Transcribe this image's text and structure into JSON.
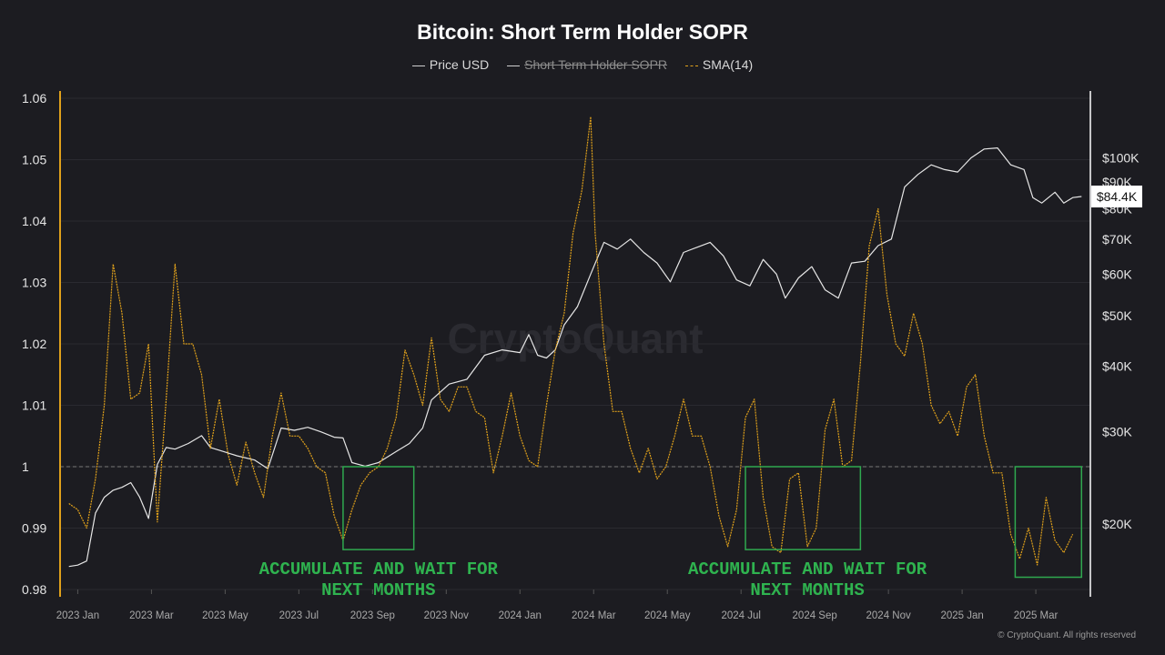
{
  "chart_data": {
    "type": "line",
    "title": "Bitcoin: Short Term Holder SOPR",
    "legend": [
      {
        "name": "Price USD",
        "color": "#e6e6e6",
        "hidden": false
      },
      {
        "name": "Short Term Holder SOPR",
        "color": "#bdbdbd",
        "hidden": true
      },
      {
        "name": "SMA(14)",
        "color": "#e0a11b",
        "hidden": false
      }
    ],
    "x_ticks": [
      "2023 Jan",
      "2023 Mar",
      "2023 May",
      "2023 Jul",
      "2023 Sep",
      "2023 Nov",
      "2024 Jan",
      "2024 Mar",
      "2024 May",
      "2024 Jul",
      "2024 Sep",
      "2024 Nov",
      "2025 Jan",
      "2025 Mar"
    ],
    "x_range": [
      2022.96,
      2025.29
    ],
    "y_left": {
      "ticks": [
        "1.06",
        "1.05",
        "1.04",
        "1.03",
        "1.02",
        "1.01",
        "1",
        "0.99",
        "0.98"
      ],
      "ylim": [
        0.98,
        1.06
      ],
      "color": "#e0a11b"
    },
    "y_right": {
      "ticks": [
        "$100K",
        "$90K",
        "$80K",
        "$70K",
        "$60K",
        "$50K",
        "$40K",
        "$30K",
        "$20K"
      ],
      "scale": "log",
      "ylim": [
        15000,
        130000
      ]
    },
    "reference_line": 1.0,
    "current_price_label": "$84.4K",
    "series": [
      {
        "name": "Price USD",
        "axis": "right",
        "points": [
          [
            2022.98,
            16600
          ],
          [
            2023.0,
            16700
          ],
          [
            2023.02,
            17000
          ],
          [
            2023.04,
            21000
          ],
          [
            2023.06,
            22500
          ],
          [
            2023.08,
            23200
          ],
          [
            2023.1,
            23500
          ],
          [
            2023.12,
            24000
          ],
          [
            2023.14,
            22500
          ],
          [
            2023.16,
            20500
          ],
          [
            2023.18,
            26000
          ],
          [
            2023.2,
            28000
          ],
          [
            2023.22,
            27800
          ],
          [
            2023.25,
            28500
          ],
          [
            2023.28,
            29500
          ],
          [
            2023.3,
            28000
          ],
          [
            2023.33,
            27500
          ],
          [
            2023.36,
            27000
          ],
          [
            2023.4,
            26500
          ],
          [
            2023.43,
            25500
          ],
          [
            2023.46,
            30500
          ],
          [
            2023.49,
            30200
          ],
          [
            2023.52,
            30600
          ],
          [
            2023.55,
            30000
          ],
          [
            2023.58,
            29300
          ],
          [
            2023.6,
            29200
          ],
          [
            2023.62,
            26200
          ],
          [
            2023.65,
            25800
          ],
          [
            2023.68,
            26200
          ],
          [
            2023.72,
            27500
          ],
          [
            2023.75,
            28500
          ],
          [
            2023.78,
            30500
          ],
          [
            2023.8,
            34500
          ],
          [
            2023.84,
            37000
          ],
          [
            2023.88,
            37800
          ],
          [
            2023.92,
            42000
          ],
          [
            2023.96,
            43000
          ],
          [
            2024.0,
            42500
          ],
          [
            2024.02,
            46000
          ],
          [
            2024.04,
            42000
          ],
          [
            2024.06,
            41500
          ],
          [
            2024.08,
            43000
          ],
          [
            2024.1,
            48000
          ],
          [
            2024.13,
            52000
          ],
          [
            2024.16,
            60000
          ],
          [
            2024.19,
            69000
          ],
          [
            2024.22,
            67000
          ],
          [
            2024.25,
            70000
          ],
          [
            2024.28,
            66000
          ],
          [
            2024.31,
            63000
          ],
          [
            2024.34,
            58000
          ],
          [
            2024.37,
            66000
          ],
          [
            2024.4,
            67500
          ],
          [
            2024.43,
            69000
          ],
          [
            2024.46,
            65000
          ],
          [
            2024.49,
            58500
          ],
          [
            2024.52,
            57000
          ],
          [
            2024.55,
            64000
          ],
          [
            2024.58,
            60000
          ],
          [
            2024.6,
            54000
          ],
          [
            2024.63,
            59000
          ],
          [
            2024.66,
            62000
          ],
          [
            2024.69,
            56000
          ],
          [
            2024.72,
            54000
          ],
          [
            2024.75,
            63000
          ],
          [
            2024.78,
            63500
          ],
          [
            2024.81,
            68000
          ],
          [
            2024.84,
            70000
          ],
          [
            2024.87,
            88000
          ],
          [
            2024.9,
            93000
          ],
          [
            2024.93,
            97000
          ],
          [
            2024.96,
            95000
          ],
          [
            2024.99,
            94000
          ],
          [
            2025.02,
            100000
          ],
          [
            2025.05,
            104000
          ],
          [
            2025.08,
            104500
          ],
          [
            2025.11,
            97000
          ],
          [
            2025.14,
            95000
          ],
          [
            2025.16,
            84000
          ],
          [
            2025.18,
            82000
          ],
          [
            2025.21,
            86000
          ],
          [
            2025.23,
            82000
          ],
          [
            2025.25,
            84000
          ],
          [
            2025.27,
            84400
          ]
        ]
      },
      {
        "name": "SMA(14)",
        "axis": "left",
        "points": [
          [
            2022.98,
            0.994
          ],
          [
            2023.0,
            0.993
          ],
          [
            2023.02,
            0.99
          ],
          [
            2023.04,
            0.998
          ],
          [
            2023.06,
            1.01
          ],
          [
            2023.08,
            1.033
          ],
          [
            2023.1,
            1.025
          ],
          [
            2023.12,
            1.011
          ],
          [
            2023.14,
            1.012
          ],
          [
            2023.16,
            1.02
          ],
          [
            2023.18,
            0.991
          ],
          [
            2023.2,
            1.011
          ],
          [
            2023.22,
            1.033
          ],
          [
            2023.24,
            1.02
          ],
          [
            2023.26,
            1.02
          ],
          [
            2023.28,
            1.015
          ],
          [
            2023.3,
            1.003
          ],
          [
            2023.32,
            1.011
          ],
          [
            2023.34,
            1.002
          ],
          [
            2023.36,
            0.997
          ],
          [
            2023.38,
            1.004
          ],
          [
            2023.4,
            0.999
          ],
          [
            2023.42,
            0.995
          ],
          [
            2023.44,
            1.005
          ],
          [
            2023.46,
            1.012
          ],
          [
            2023.48,
            1.005
          ],
          [
            2023.5,
            1.005
          ],
          [
            2023.52,
            1.003
          ],
          [
            2023.54,
            1.0
          ],
          [
            2023.56,
            0.999
          ],
          [
            2023.58,
            0.992
          ],
          [
            2023.6,
            0.988
          ],
          [
            2023.62,
            0.993
          ],
          [
            2023.64,
            0.997
          ],
          [
            2023.66,
            0.999
          ],
          [
            2023.68,
            1.0
          ],
          [
            2023.7,
            1.003
          ],
          [
            2023.72,
            1.008
          ],
          [
            2023.74,
            1.019
          ],
          [
            2023.76,
            1.015
          ],
          [
            2023.78,
            1.01
          ],
          [
            2023.8,
            1.021
          ],
          [
            2023.82,
            1.011
          ],
          [
            2023.84,
            1.009
          ],
          [
            2023.86,
            1.013
          ],
          [
            2023.88,
            1.013
          ],
          [
            2023.9,
            1.009
          ],
          [
            2023.92,
            1.008
          ],
          [
            2023.94,
            0.999
          ],
          [
            2023.96,
            1.005
          ],
          [
            2023.98,
            1.012
          ],
          [
            2024.0,
            1.005
          ],
          [
            2024.02,
            1.001
          ],
          [
            2024.04,
            1.0
          ],
          [
            2024.06,
            1.01
          ],
          [
            2024.08,
            1.019
          ],
          [
            2024.1,
            1.025
          ],
          [
            2024.12,
            1.038
          ],
          [
            2024.14,
            1.045
          ],
          [
            2024.16,
            1.057
          ],
          [
            2024.17,
            1.038
          ],
          [
            2024.19,
            1.02
          ],
          [
            2024.21,
            1.009
          ],
          [
            2024.23,
            1.009
          ],
          [
            2024.25,
            1.003
          ],
          [
            2024.27,
            0.999
          ],
          [
            2024.29,
            1.003
          ],
          [
            2024.31,
            0.998
          ],
          [
            2024.33,
            1.0
          ],
          [
            2024.35,
            1.005
          ],
          [
            2024.37,
            1.011
          ],
          [
            2024.39,
            1.005
          ],
          [
            2024.41,
            1.005
          ],
          [
            2024.43,
            1.0
          ],
          [
            2024.45,
            0.992
          ],
          [
            2024.47,
            0.987
          ],
          [
            2024.49,
            0.993
          ],
          [
            2024.51,
            1.008
          ],
          [
            2024.53,
            1.011
          ],
          [
            2024.55,
            0.995
          ],
          [
            2024.57,
            0.987
          ],
          [
            2024.59,
            0.986
          ],
          [
            2024.61,
            0.998
          ],
          [
            2024.63,
            0.999
          ],
          [
            2024.65,
            0.987
          ],
          [
            2024.67,
            0.99
          ],
          [
            2024.69,
            1.006
          ],
          [
            2024.71,
            1.011
          ],
          [
            2024.73,
            1.0
          ],
          [
            2024.75,
            1.001
          ],
          [
            2024.77,
            1.017
          ],
          [
            2024.79,
            1.036
          ],
          [
            2024.81,
            1.042
          ],
          [
            2024.83,
            1.028
          ],
          [
            2024.85,
            1.02
          ],
          [
            2024.87,
            1.018
          ],
          [
            2024.89,
            1.025
          ],
          [
            2024.91,
            1.02
          ],
          [
            2024.93,
            1.01
          ],
          [
            2024.95,
            1.007
          ],
          [
            2024.97,
            1.009
          ],
          [
            2024.99,
            1.005
          ],
          [
            2025.01,
            1.013
          ],
          [
            2025.03,
            1.015
          ],
          [
            2025.05,
            1.005
          ],
          [
            2025.07,
            0.999
          ],
          [
            2025.09,
            0.999
          ],
          [
            2025.11,
            0.989
          ],
          [
            2025.13,
            0.985
          ],
          [
            2025.15,
            0.99
          ],
          [
            2025.17,
            0.984
          ],
          [
            2025.19,
            0.995
          ],
          [
            2025.21,
            0.988
          ],
          [
            2025.23,
            0.986
          ],
          [
            2025.25,
            0.989
          ]
        ]
      }
    ],
    "highlight_boxes": [
      {
        "x0": 2023.6,
        "x1": 2023.76,
        "y0": 0.9865,
        "y1": 1.0
      },
      {
        "x0": 2024.51,
        "x1": 2024.77,
        "y0": 0.9865,
        "y1": 1.0
      },
      {
        "x0": 2025.12,
        "x1": 2025.27,
        "y0": 0.982,
        "y1": 1.0
      }
    ],
    "annotations": [
      {
        "text": "ACCUMULATE AND WAIT FOR\nNEXT MONTHS",
        "x": 2023.68,
        "y": 0.9815
      },
      {
        "text": "ACCUMULATE AND WAIT FOR\nNEXT MONTHS",
        "x": 2024.65,
        "y": 0.9815
      }
    ],
    "watermark": "CryptoQuant"
  },
  "copyright": "© CryptoQuant. All rights reserved"
}
